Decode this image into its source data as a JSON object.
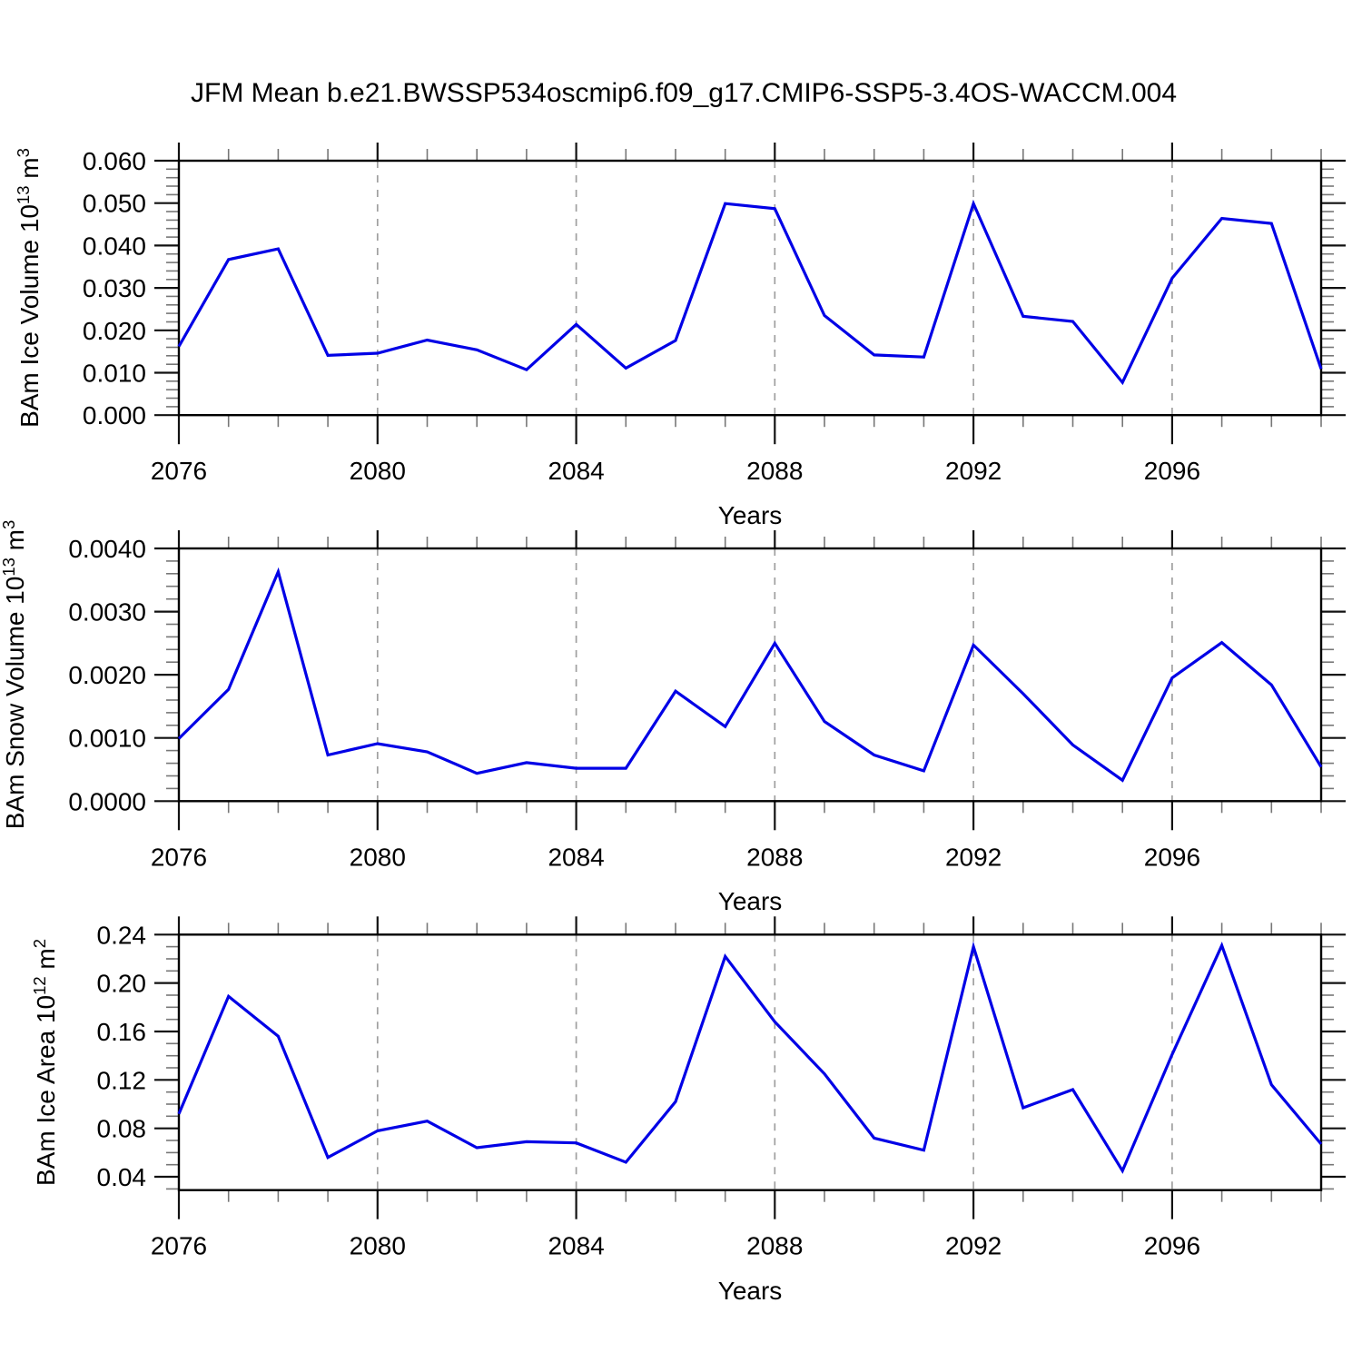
{
  "title": "JFM Mean b.e21.BWSSP534oscmip6.f09_g17.CMIP6-SSP5-3.4OS-WACCM.004",
  "chart_data": [
    {
      "type": "line",
      "name": "bam-ice-volume",
      "ylabel": {
        "pre": "BAm Ice Volume 10",
        "exp": "13",
        "mid": " m",
        "exp2": "3"
      },
      "xlabel": "Years",
      "years": [
        2076,
        2077,
        2078,
        2079,
        2080,
        2081,
        2082,
        2083,
        2084,
        2085,
        2086,
        2087,
        2088,
        2089,
        2090,
        2091,
        2092,
        2093,
        2094,
        2095,
        2096,
        2097,
        2098,
        2099
      ],
      "values": [
        0.0162,
        0.0367,
        0.0392,
        0.0141,
        0.0146,
        0.0177,
        0.0154,
        0.0107,
        0.0214,
        0.0111,
        0.0176,
        0.0499,
        0.0487,
        0.0235,
        0.0142,
        0.0137,
        0.0499,
        0.0233,
        0.0221,
        0.0077,
        0.0323,
        0.0464,
        0.0452,
        0.0109
      ],
      "xlim": [
        2076,
        2099
      ],
      "ylim": [
        0,
        0.06
      ],
      "xticks": [
        {
          "v": 2076,
          "label": "2076"
        },
        {
          "v": 2080,
          "label": "2080"
        },
        {
          "v": 2084,
          "label": "2084"
        },
        {
          "v": 2088,
          "label": "2088"
        },
        {
          "v": 2092,
          "label": "2092"
        },
        {
          "v": 2096,
          "label": "2096"
        }
      ],
      "yticks": [
        {
          "v": 0,
          "label": "0.000"
        },
        {
          "v": 0.01,
          "label": "0.010"
        },
        {
          "v": 0.02,
          "label": "0.020"
        },
        {
          "v": 0.03,
          "label": "0.030"
        },
        {
          "v": 0.04,
          "label": "0.040"
        },
        {
          "v": 0.05,
          "label": "0.050"
        },
        {
          "v": 0.06,
          "label": "0.060"
        }
      ],
      "y_minor_step": 0.002,
      "grid_x": [
        2080,
        2084,
        2088,
        2092,
        2096
      ],
      "grid_on": true,
      "line_color": "#0000e6"
    },
    {
      "type": "line",
      "name": "bam-snow-volume",
      "ylabel": {
        "pre": "BAm Snow Volume 10",
        "exp": "13",
        "mid": " m",
        "exp2": "3"
      },
      "xlabel": "Years",
      "years": [
        2076,
        2077,
        2078,
        2079,
        2080,
        2081,
        2082,
        2083,
        2084,
        2085,
        2086,
        2087,
        2088,
        2089,
        2090,
        2091,
        2092,
        2093,
        2094,
        2095,
        2096,
        2097,
        2098,
        2099
      ],
      "values": [
        0.00099,
        0.00177,
        0.00363,
        0.00073,
        0.00091,
        0.00078,
        0.00044,
        0.00061,
        0.00052,
        0.00052,
        0.00174,
        0.00118,
        0.0025,
        0.00126,
        0.00073,
        0.00048,
        0.00247,
        0.0017,
        0.00089,
        0.00033,
        0.00195,
        0.00251,
        0.00184,
        0.00054
      ],
      "xlim": [
        2076,
        2099
      ],
      "ylim": [
        0,
        0.004
      ],
      "xticks": [
        {
          "v": 2076,
          "label": "2076"
        },
        {
          "v": 2080,
          "label": "2080"
        },
        {
          "v": 2084,
          "label": "2084"
        },
        {
          "v": 2088,
          "label": "2088"
        },
        {
          "v": 2092,
          "label": "2092"
        },
        {
          "v": 2096,
          "label": "2096"
        }
      ],
      "yticks": [
        {
          "v": 0,
          "label": "0.0000"
        },
        {
          "v": 0.001,
          "label": "0.0010"
        },
        {
          "v": 0.002,
          "label": "0.0020"
        },
        {
          "v": 0.003,
          "label": "0.0030"
        },
        {
          "v": 0.004,
          "label": "0.0040"
        }
      ],
      "y_minor_step": 0.0002,
      "grid_x": [
        2080,
        2084,
        2088,
        2092,
        2096
      ],
      "grid_on": true,
      "line_color": "#0000e6"
    },
    {
      "type": "line",
      "name": "bam-ice-area",
      "ylabel": {
        "pre": "BAm Ice Area 10",
        "exp": "12",
        "mid": " m",
        "exp2": "2"
      },
      "xlabel": "Years",
      "years": [
        2076,
        2077,
        2078,
        2079,
        2080,
        2081,
        2082,
        2083,
        2084,
        2085,
        2086,
        2087,
        2088,
        2089,
        2090,
        2091,
        2092,
        2093,
        2094,
        2095,
        2096,
        2097,
        2098,
        2099
      ],
      "values": [
        0.092,
        0.189,
        0.156,
        0.056,
        0.078,
        0.086,
        0.064,
        0.069,
        0.068,
        0.052,
        0.102,
        0.222,
        0.168,
        0.125,
        0.072,
        0.062,
        0.23,
        0.097,
        0.112,
        0.045,
        0.141,
        0.231,
        0.116,
        0.067
      ],
      "xlim": [
        2076,
        2099
      ],
      "ylim": [
        0.029,
        0.24
      ],
      "xticks": [
        {
          "v": 2076,
          "label": "2076"
        },
        {
          "v": 2080,
          "label": "2080"
        },
        {
          "v": 2084,
          "label": "2084"
        },
        {
          "v": 2088,
          "label": "2088"
        },
        {
          "v": 2092,
          "label": "2092"
        },
        {
          "v": 2096,
          "label": "2096"
        }
      ],
      "yticks": [
        {
          "v": 0.04,
          "label": "0.04"
        },
        {
          "v": 0.08,
          "label": "0.08"
        },
        {
          "v": 0.12,
          "label": "0.12"
        },
        {
          "v": 0.16,
          "label": "0.16"
        },
        {
          "v": 0.2,
          "label": "0.20"
        },
        {
          "v": 0.24,
          "label": "0.24"
        }
      ],
      "y_minor_step": 0.01,
      "grid_x": [
        2080,
        2084,
        2088,
        2092,
        2096
      ],
      "grid_on": true,
      "line_color": "#0000e6"
    }
  ]
}
